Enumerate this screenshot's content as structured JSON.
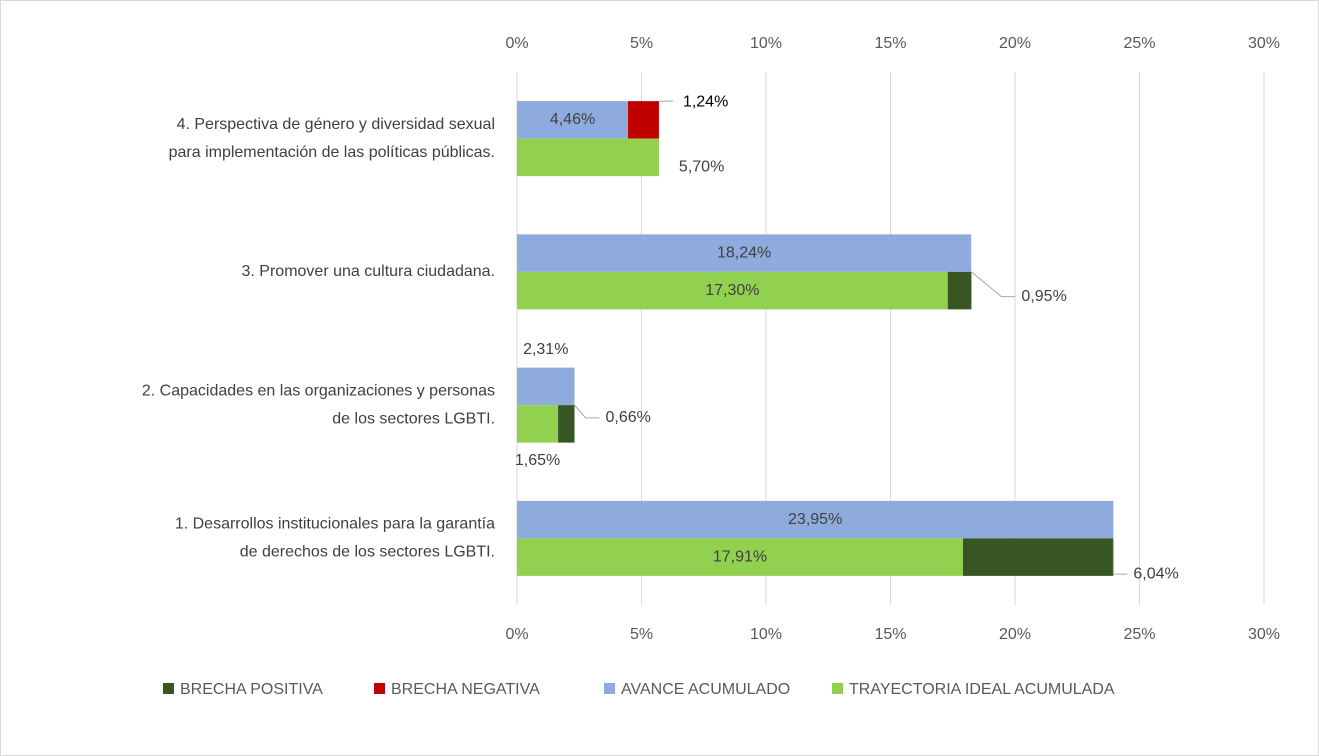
{
  "chart_data": {
    "type": "bar",
    "orientation": "horizontal",
    "categories": [
      [
        "1. Desarrollos institucionales para la garantía",
        "de derechos de los sectores LGBTI."
      ],
      [
        "2. Capacidades en las organizaciones y personas",
        "de los sectores LGBTI."
      ],
      [
        "3. Promover una cultura ciudadana."
      ],
      [
        "4. Perspectiva de género y diversidad sexual",
        "para implementación de las políticas públicas."
      ]
    ],
    "series": [
      {
        "name": "BRECHA POSITIVA",
        "color": "#375623",
        "values": [
          6.04,
          0.66,
          0.95,
          null
        ],
        "value_labels": [
          "6,04%",
          "0,66%",
          "0,95%",
          null
        ]
      },
      {
        "name": "BRECHA NEGATIVA",
        "color": "#c00000",
        "values": [
          null,
          null,
          null,
          1.24
        ],
        "value_labels": [
          null,
          null,
          null,
          "1,24%"
        ]
      },
      {
        "name": "AVANCE ACUMULADO",
        "color": "#8faadc",
        "values": [
          23.95,
          2.31,
          18.24,
          4.46
        ],
        "value_labels": [
          "23,95%",
          "2,31%",
          "18,24%",
          "4,46%"
        ]
      },
      {
        "name": "TRAYECTORIA IDEAL ACUMULADA",
        "color": "#92d050",
        "values": [
          17.91,
          1.65,
          17.3,
          5.7
        ],
        "value_labels": [
          "17,91%",
          "1,65%",
          "17,30%",
          "5,70%"
        ]
      }
    ],
    "xlim": [
      0,
      30
    ],
    "xticks": [
      {
        "value": 0,
        "label": "0%"
      },
      {
        "value": 5,
        "label": "5%"
      },
      {
        "value": 10,
        "label": "10%"
      },
      {
        "value": 15,
        "label": "15%"
      },
      {
        "value": 20,
        "label": "20%"
      },
      {
        "value": 25,
        "label": "25%"
      },
      {
        "value": 30,
        "label": "30%"
      }
    ],
    "grid": true,
    "legend": "bottom"
  }
}
